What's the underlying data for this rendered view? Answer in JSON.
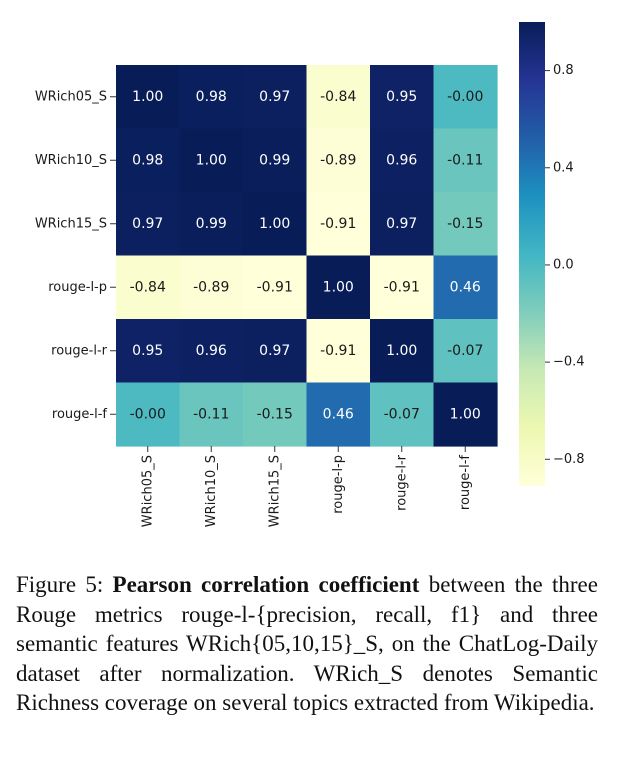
{
  "chart_data": {
    "type": "heatmap",
    "rows": [
      "WRich05_S",
      "WRich10_S",
      "WRich15_S",
      "rouge-l-p",
      "rouge-l-r",
      "rouge-l-f"
    ],
    "columns": [
      "WRich05_S",
      "WRich10_S",
      "WRich15_S",
      "rouge-l-p",
      "rouge-l-r",
      "rouge-l-f"
    ],
    "values": [
      [
        1.0,
        0.98,
        0.97,
        -0.84,
        0.95,
        -0.0
      ],
      [
        0.98,
        1.0,
        0.99,
        -0.89,
        0.96,
        -0.11
      ],
      [
        0.97,
        0.99,
        1.0,
        -0.91,
        0.97,
        -0.15
      ],
      [
        -0.84,
        -0.89,
        -0.91,
        1.0,
        -0.91,
        0.46
      ],
      [
        0.95,
        0.96,
        0.97,
        -0.91,
        1.0,
        -0.07
      ],
      [
        -0.0,
        -0.11,
        -0.15,
        0.46,
        -0.07,
        1.0
      ]
    ],
    "cell_labels": [
      [
        "1.00",
        "0.98",
        "0.97",
        "-0.84",
        "0.95",
        "-0.00"
      ],
      [
        "0.98",
        "1.00",
        "0.99",
        "-0.89",
        "0.96",
        "-0.11"
      ],
      [
        "0.97",
        "0.99",
        "1.00",
        "-0.91",
        "0.97",
        "-0.15"
      ],
      [
        "-0.84",
        "-0.89",
        "-0.91",
        "1.00",
        "-0.91",
        "0.46"
      ],
      [
        "0.95",
        "0.96",
        "0.97",
        "-0.91",
        "1.00",
        "-0.07"
      ],
      [
        "-0.00",
        "-0.11",
        "-0.15",
        "0.46",
        "-0.07",
        "1.00"
      ]
    ],
    "colormap": "YlGnBu",
    "vmin": -0.91,
    "vmax": 1.0,
    "colorbar": {
      "ticks": [
        0.8,
        0.4,
        0.0,
        -0.4,
        -0.8
      ],
      "tick_labels": [
        "0.8",
        "0.4",
        "0.0",
        "−0.4",
        "−0.8"
      ],
      "position": "right"
    }
  },
  "caption": {
    "prefix": "Figure 5: ",
    "bold": "Pearson correlation coefficient",
    "rest": " between the three Rouge metrics rouge-l-{precision, recall, f1} and three semantic features WRich{05,10,15}_S, on the ChatLog-Daily dataset after normalization. WRich_S denotes Semantic Richness coverage on several topics extracted from Wikipedia."
  }
}
